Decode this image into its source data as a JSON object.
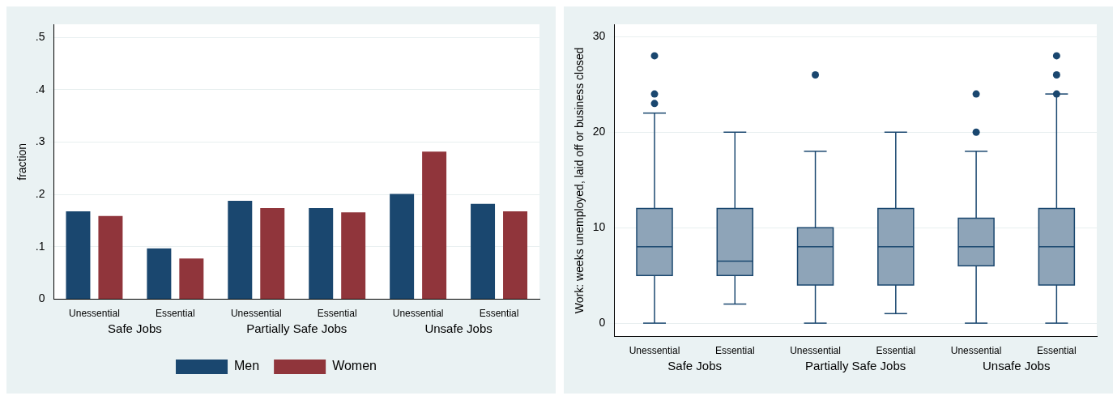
{
  "chart_data": [
    {
      "type": "bar",
      "ylabel": "fraction",
      "categories": [
        "Unessential",
        "Essential",
        "Unessential",
        "Essential",
        "Unessential",
        "Essential"
      ],
      "series": [
        {
          "name": "Men",
          "color": "#1a476f",
          "values": [
            0.168,
            0.097,
            0.188,
            0.174,
            0.201,
            0.182
          ]
        },
        {
          "name": "Women",
          "color": "#90353b",
          "values": [
            0.159,
            0.078,
            0.174,
            0.166,
            0.282,
            0.168
          ]
        }
      ],
      "ylim": [
        0,
        0.525
      ],
      "yticks": [
        0,
        {
          "value": 0.1,
          "label": ".1"
        },
        {
          "value": 0.2,
          "label": ".2"
        },
        {
          "value": 0.3,
          "label": ".3"
        },
        {
          "value": 0.4,
          "label": ".4"
        },
        {
          "value": 0.5,
          "label": ".5"
        }
      ],
      "grid": "y",
      "legend": "bottom",
      "annotations": [
        "Safe Jobs",
        "Partially Safe Jobs",
        "Unsafe Jobs"
      ]
    },
    {
      "type": "box",
      "ylabel": "Work: weeks unemployed, laid off or business closed",
      "categories": [
        "Unessential",
        "Essential",
        "Unessential",
        "Essential",
        "Unessential",
        "Essential"
      ],
      "series": [
        {
          "color": "#8ea4b8",
          "boxes": [
            {
              "low": 0,
              "q1": 5,
              "median": 8,
              "q3": 12,
              "high": 22,
              "outliers": [
                23,
                24,
                28
              ]
            },
            {
              "low": 2,
              "q1": 5,
              "median": 6.5,
              "q3": 12,
              "high": 20
            },
            {
              "low": 0,
              "q1": 4,
              "median": 8,
              "q3": 10,
              "high": 18,
              "outliers": [
                26
              ]
            },
            {
              "low": 1,
              "q1": 4,
              "median": 8,
              "q3": 12,
              "high": 20
            },
            {
              "low": 0,
              "q1": 6,
              "median": 8,
              "q3": 11,
              "high": 18,
              "outliers": [
                20,
                24
              ]
            },
            {
              "low": 0,
              "q1": 4,
              "median": 8,
              "q3": 12,
              "high": 24,
              "outliers": [
                24,
                26,
                28
              ]
            }
          ]
        }
      ],
      "ylim": [
        -1.4,
        31.3
      ],
      "yticks": [
        0,
        10,
        20,
        30
      ],
      "grid": "y",
      "annotations": [
        "Safe Jobs",
        "Partially Safe Jobs",
        "Unsafe Jobs"
      ]
    }
  ]
}
